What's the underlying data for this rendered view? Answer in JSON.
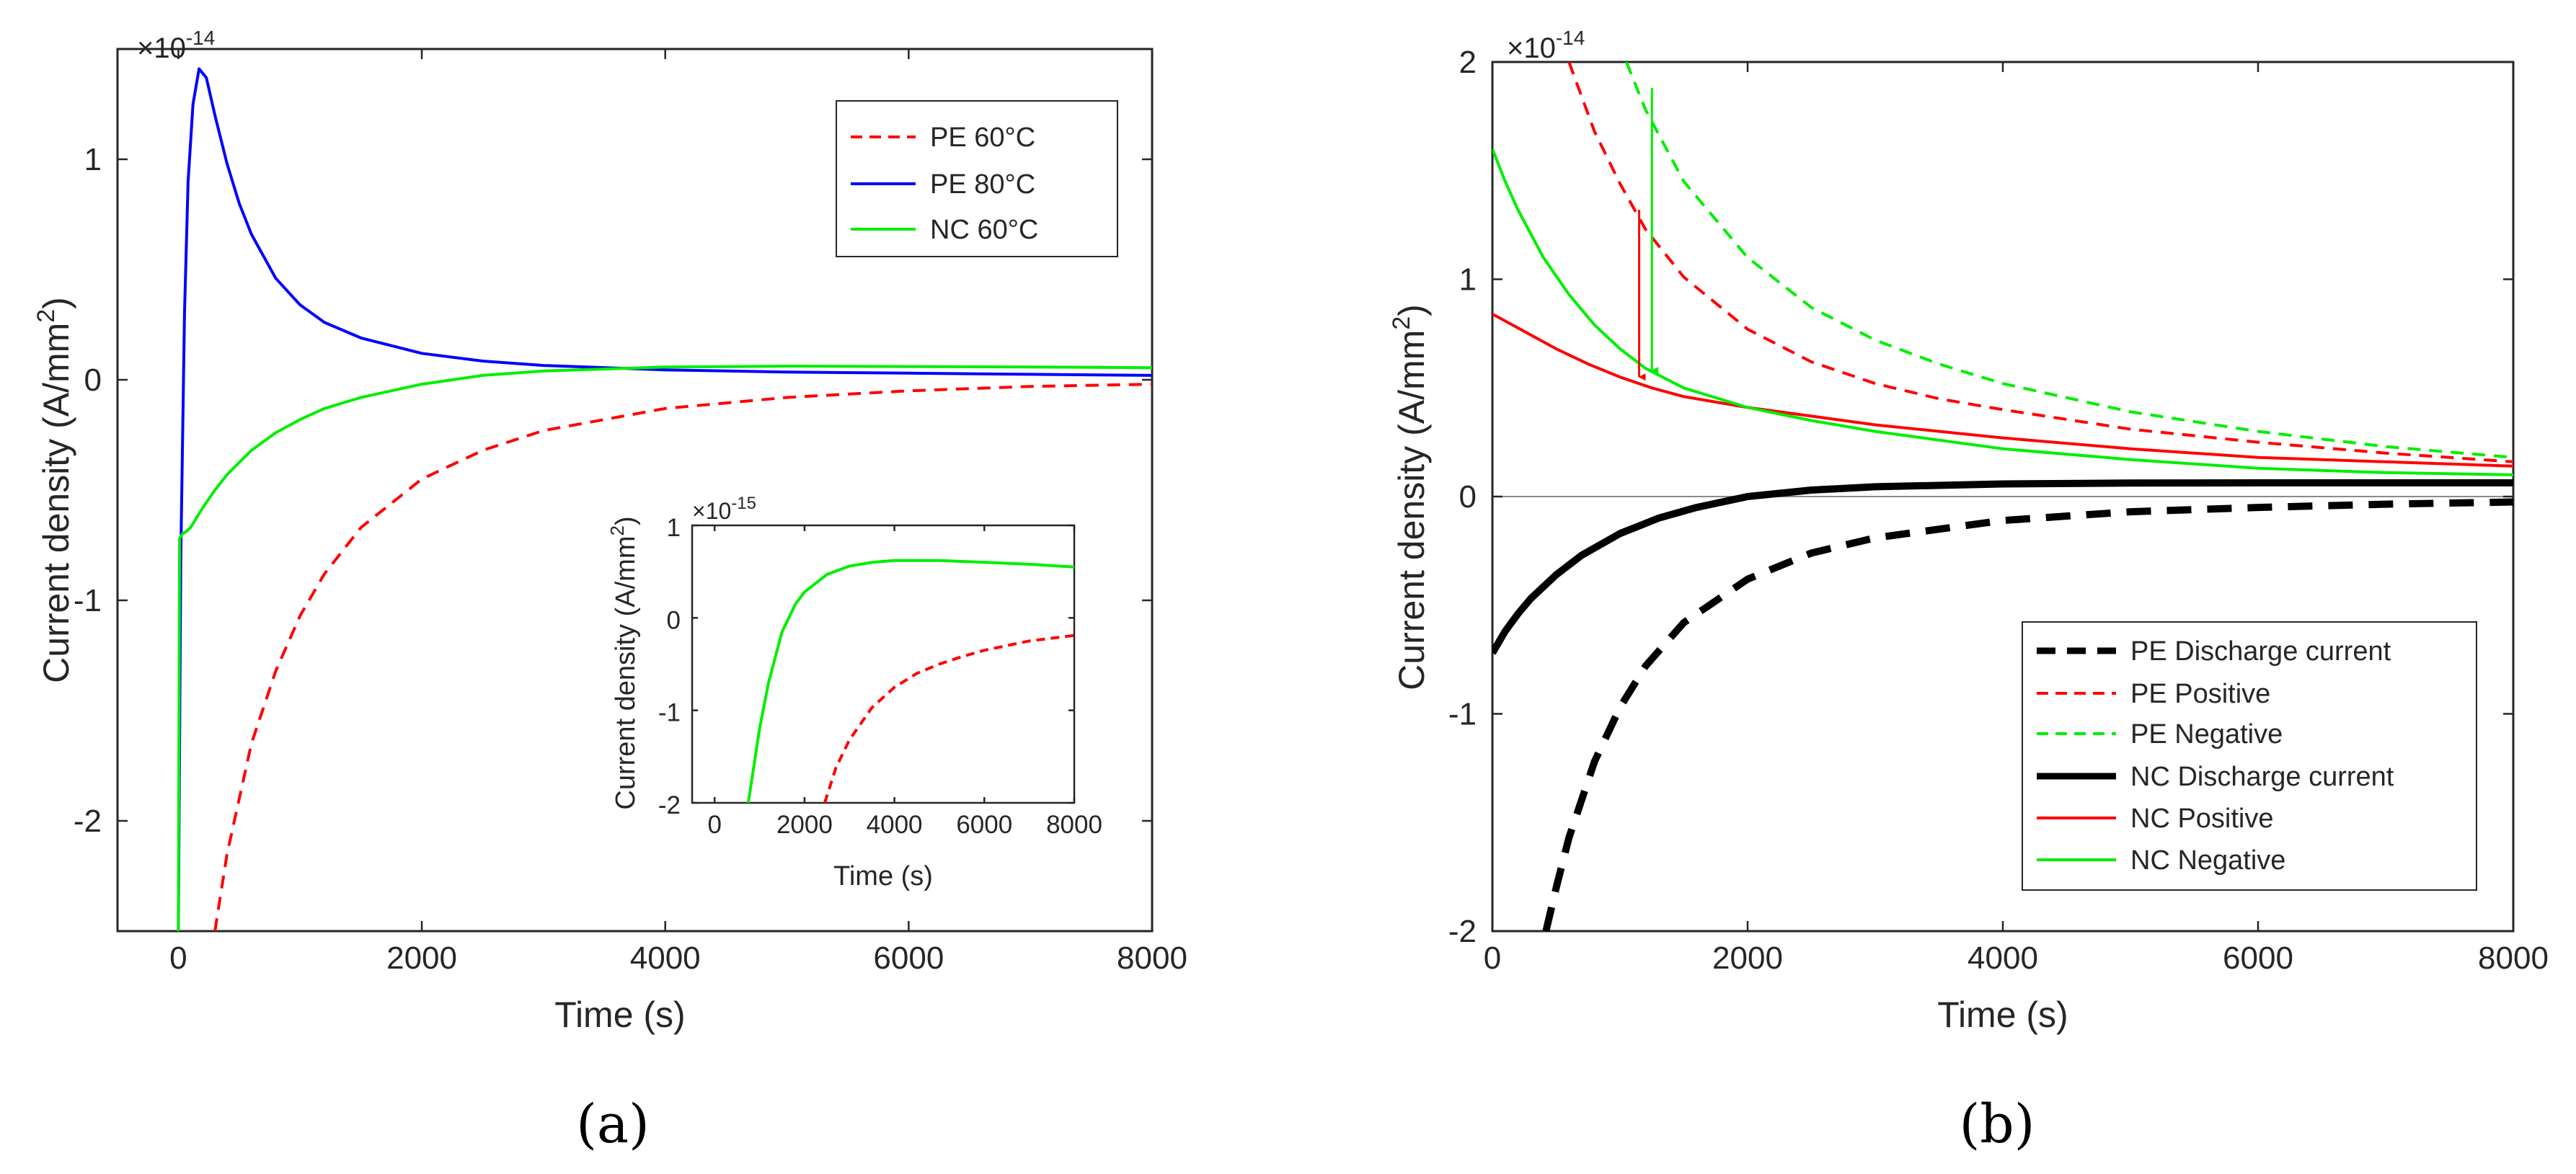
{
  "figure_labels": {
    "a": "(a)",
    "b": "(b)"
  },
  "colors": {
    "red": "#ff0000",
    "blue": "#0000ff",
    "green": "#00ee00",
    "black": "#000000",
    "axis": "#262626"
  },
  "chart_data": [
    {
      "id": "a-main",
      "type": "line",
      "caption": "(a)",
      "xlabel": "Time (s)",
      "ylabel": "Current density (A/mm",
      "ylabel_sup": "2",
      "ylabel_tail": ")",
      "multiplier": "×10",
      "multiplier_exp": "-14",
      "xlim": [
        -500,
        8000
      ],
      "ylim": [
        -2.5,
        1.5
      ],
      "xticks": [
        0,
        2000,
        4000,
        6000,
        8000
      ],
      "xtick_labels": [
        "0",
        "2000",
        "4000",
        "6000",
        "8000"
      ],
      "yticks": [
        -2,
        -1,
        0,
        1
      ],
      "ytick_labels": [
        "-2",
        "-1",
        "0",
        "1"
      ],
      "legend_position": "top-right",
      "series": [
        {
          "name": "PE 60°C",
          "color": "#ff0000",
          "style": "dashed",
          "x": [
            300,
            400,
            600,
            800,
            1000,
            1200,
            1500,
            2000,
            2500,
            3000,
            4000,
            5000,
            6000,
            7000,
            8000
          ],
          "y": [
            -2.5,
            -2.15,
            -1.65,
            -1.32,
            -1.07,
            -0.88,
            -0.67,
            -0.45,
            -0.32,
            -0.23,
            -0.13,
            -0.08,
            -0.05,
            -0.03,
            -0.02
          ]
        },
        {
          "name": "PE 80°C",
          "color": "#0000ff",
          "style": "solid",
          "x": [
            0,
            20,
            50,
            80,
            120,
            170,
            230,
            300,
            400,
            500,
            600,
            800,
            1000,
            1200,
            1500,
            2000,
            2500,
            3000,
            4000,
            5000,
            6000,
            7000,
            8000
          ],
          "y": [
            -2.5,
            -0.8,
            0.3,
            0.9,
            1.25,
            1.41,
            1.37,
            1.2,
            0.98,
            0.8,
            0.66,
            0.46,
            0.34,
            0.26,
            0.19,
            0.12,
            0.085,
            0.065,
            0.045,
            0.035,
            0.03,
            0.025,
            0.02
          ]
        },
        {
          "name": "NC 60°C",
          "color": "#00ee00",
          "style": "solid",
          "x": [
            0,
            10,
            30,
            60,
            100,
            200,
            300,
            400,
            600,
            800,
            1000,
            1200,
            1500,
            2000,
            2500,
            3000,
            4000,
            5000,
            6000,
            7000,
            8000
          ],
          "y": [
            -2.5,
            -0.72,
            -0.7,
            -0.69,
            -0.67,
            -0.58,
            -0.5,
            -0.43,
            -0.32,
            -0.24,
            -0.18,
            -0.13,
            -0.08,
            -0.02,
            0.02,
            0.04,
            0.058,
            0.062,
            0.06,
            0.058,
            0.055
          ]
        }
      ]
    },
    {
      "id": "a-inset",
      "type": "line",
      "xlabel": "Time (s)",
      "ylabel": "Current density (A/mm",
      "ylabel_sup": "2",
      "ylabel_tail": ")",
      "multiplier": "×10",
      "multiplier_exp": "-15",
      "xlim": [
        -500,
        8000
      ],
      "ylim": [
        -2,
        1
      ],
      "xticks": [
        0,
        2000,
        4000,
        6000,
        8000
      ],
      "xtick_labels": [
        "0",
        "2000",
        "4000",
        "6000",
        "8000"
      ],
      "yticks": [
        -2,
        -1,
        0,
        1
      ],
      "ytick_labels": [
        "-2",
        "-1",
        "0",
        "1"
      ],
      "series": [
        {
          "name": "NC 60°C",
          "color": "#00ee00",
          "style": "solid",
          "x": [
            750,
            1000,
            1200,
            1500,
            1800,
            2000,
            2500,
            3000,
            3500,
            4000,
            4500,
            5000,
            6000,
            7000,
            8000
          ],
          "y": [
            -2,
            -1.2,
            -0.7,
            -0.15,
            0.15,
            0.28,
            0.47,
            0.56,
            0.6,
            0.62,
            0.62,
            0.62,
            0.6,
            0.58,
            0.55
          ]
        },
        {
          "name": "PE 60°C",
          "color": "#ff0000",
          "style": "dashed",
          "x": [
            2450,
            2700,
            3000,
            3500,
            4000,
            4500,
            5000,
            5500,
            6000,
            7000,
            8000
          ],
          "y": [
            -2,
            -1.62,
            -1.32,
            -0.97,
            -0.75,
            -0.6,
            -0.5,
            -0.42,
            -0.35,
            -0.25,
            -0.19
          ]
        }
      ]
    },
    {
      "id": "b-main",
      "type": "line",
      "caption": "(b)",
      "xlabel": "Time (s)",
      "ylabel": "Current density (A/mm",
      "ylabel_sup": "2",
      "ylabel_tail": ")",
      "multiplier": "×10",
      "multiplier_exp": "-14",
      "xlim": [
        0,
        8000
      ],
      "ylim": [
        -2,
        2
      ],
      "xticks": [
        0,
        2000,
        4000,
        6000,
        8000
      ],
      "xtick_labels": [
        "0",
        "2000",
        "4000",
        "6000",
        "8000"
      ],
      "yticks": [
        -2,
        -1,
        0,
        1,
        2
      ],
      "ytick_labels": [
        "-2",
        "-1",
        "0",
        "1",
        "2"
      ],
      "legend_position": "bottom-right",
      "zero_line": true,
      "series": [
        {
          "name": "PE Discharge current",
          "color": "#000000",
          "style": "dashed",
          "width": "thick",
          "x": [
            420,
            500,
            600,
            800,
            1000,
            1200,
            1500,
            2000,
            2500,
            3000,
            4000,
            5000,
            6000,
            7000,
            8000
          ],
          "y": [
            -2,
            -1.8,
            -1.57,
            -1.22,
            -0.97,
            -0.78,
            -0.58,
            -0.38,
            -0.26,
            -0.19,
            -0.11,
            -0.07,
            -0.05,
            -0.035,
            -0.025
          ]
        },
        {
          "name": "PE Positive",
          "color": "#ff0000",
          "style": "dashed",
          "width": "normal",
          "x": [
            600,
            800,
            1000,
            1200,
            1500,
            2000,
            2500,
            3000,
            3500,
            4000,
            5000,
            6000,
            7000,
            8000
          ],
          "y": [
            2.0,
            1.68,
            1.44,
            1.23,
            1.01,
            0.77,
            0.62,
            0.52,
            0.45,
            0.4,
            0.31,
            0.25,
            0.2,
            0.16
          ]
        },
        {
          "name": "PE Negative",
          "color": "#00ee00",
          "style": "dashed",
          "width": "normal",
          "x": [
            1050,
            1200,
            1500,
            2000,
            2500,
            3000,
            3500,
            4000,
            5000,
            6000,
            7000,
            8000
          ],
          "y": [
            2.0,
            1.78,
            1.45,
            1.1,
            0.87,
            0.72,
            0.61,
            0.52,
            0.39,
            0.3,
            0.23,
            0.18
          ]
        },
        {
          "name": "NC Discharge current",
          "color": "#000000",
          "style": "solid",
          "width": "thick",
          "x": [
            0,
            100,
            200,
            300,
            500,
            700,
            1000,
            1300,
            1600,
            2000,
            2500,
            3000,
            4000,
            5000,
            6000,
            7000,
            8000
          ],
          "y": [
            -0.72,
            -0.62,
            -0.54,
            -0.47,
            -0.36,
            -0.27,
            -0.17,
            -0.1,
            -0.05,
            0.0,
            0.03,
            0.045,
            0.058,
            0.062,
            0.063,
            0.063,
            0.063
          ]
        },
        {
          "name": "NC Positive",
          "color": "#ff0000",
          "style": "solid",
          "width": "normal",
          "x": [
            0,
            250,
            500,
            750,
            1000,
            1250,
            1500,
            2000,
            2500,
            3000,
            4000,
            5000,
            6000,
            7000,
            8000
          ],
          "y": [
            0.84,
            0.76,
            0.68,
            0.61,
            0.55,
            0.5,
            0.46,
            0.41,
            0.37,
            0.33,
            0.27,
            0.22,
            0.18,
            0.16,
            0.14
          ]
        },
        {
          "name": "NC Negative",
          "color": "#00ee00",
          "style": "solid",
          "width": "normal",
          "x": [
            0,
            100,
            200,
            400,
            600,
            800,
            1000,
            1200,
            1500,
            2000,
            2500,
            3000,
            4000,
            5000,
            6000,
            7000,
            8000
          ],
          "y": [
            1.6,
            1.45,
            1.32,
            1.1,
            0.93,
            0.79,
            0.68,
            0.59,
            0.5,
            0.41,
            0.35,
            0.3,
            0.22,
            0.17,
            0.13,
            0.11,
            0.1
          ]
        }
      ],
      "annotations": [
        {
          "type": "arrow",
          "color": "#ff0000",
          "from": [
            1150,
            1.32
          ],
          "to": [
            1150,
            0.55
          ]
        },
        {
          "type": "arrow",
          "color": "#00ee00",
          "from": [
            1250,
            1.88
          ],
          "to": [
            1250,
            0.58
          ]
        }
      ]
    }
  ]
}
